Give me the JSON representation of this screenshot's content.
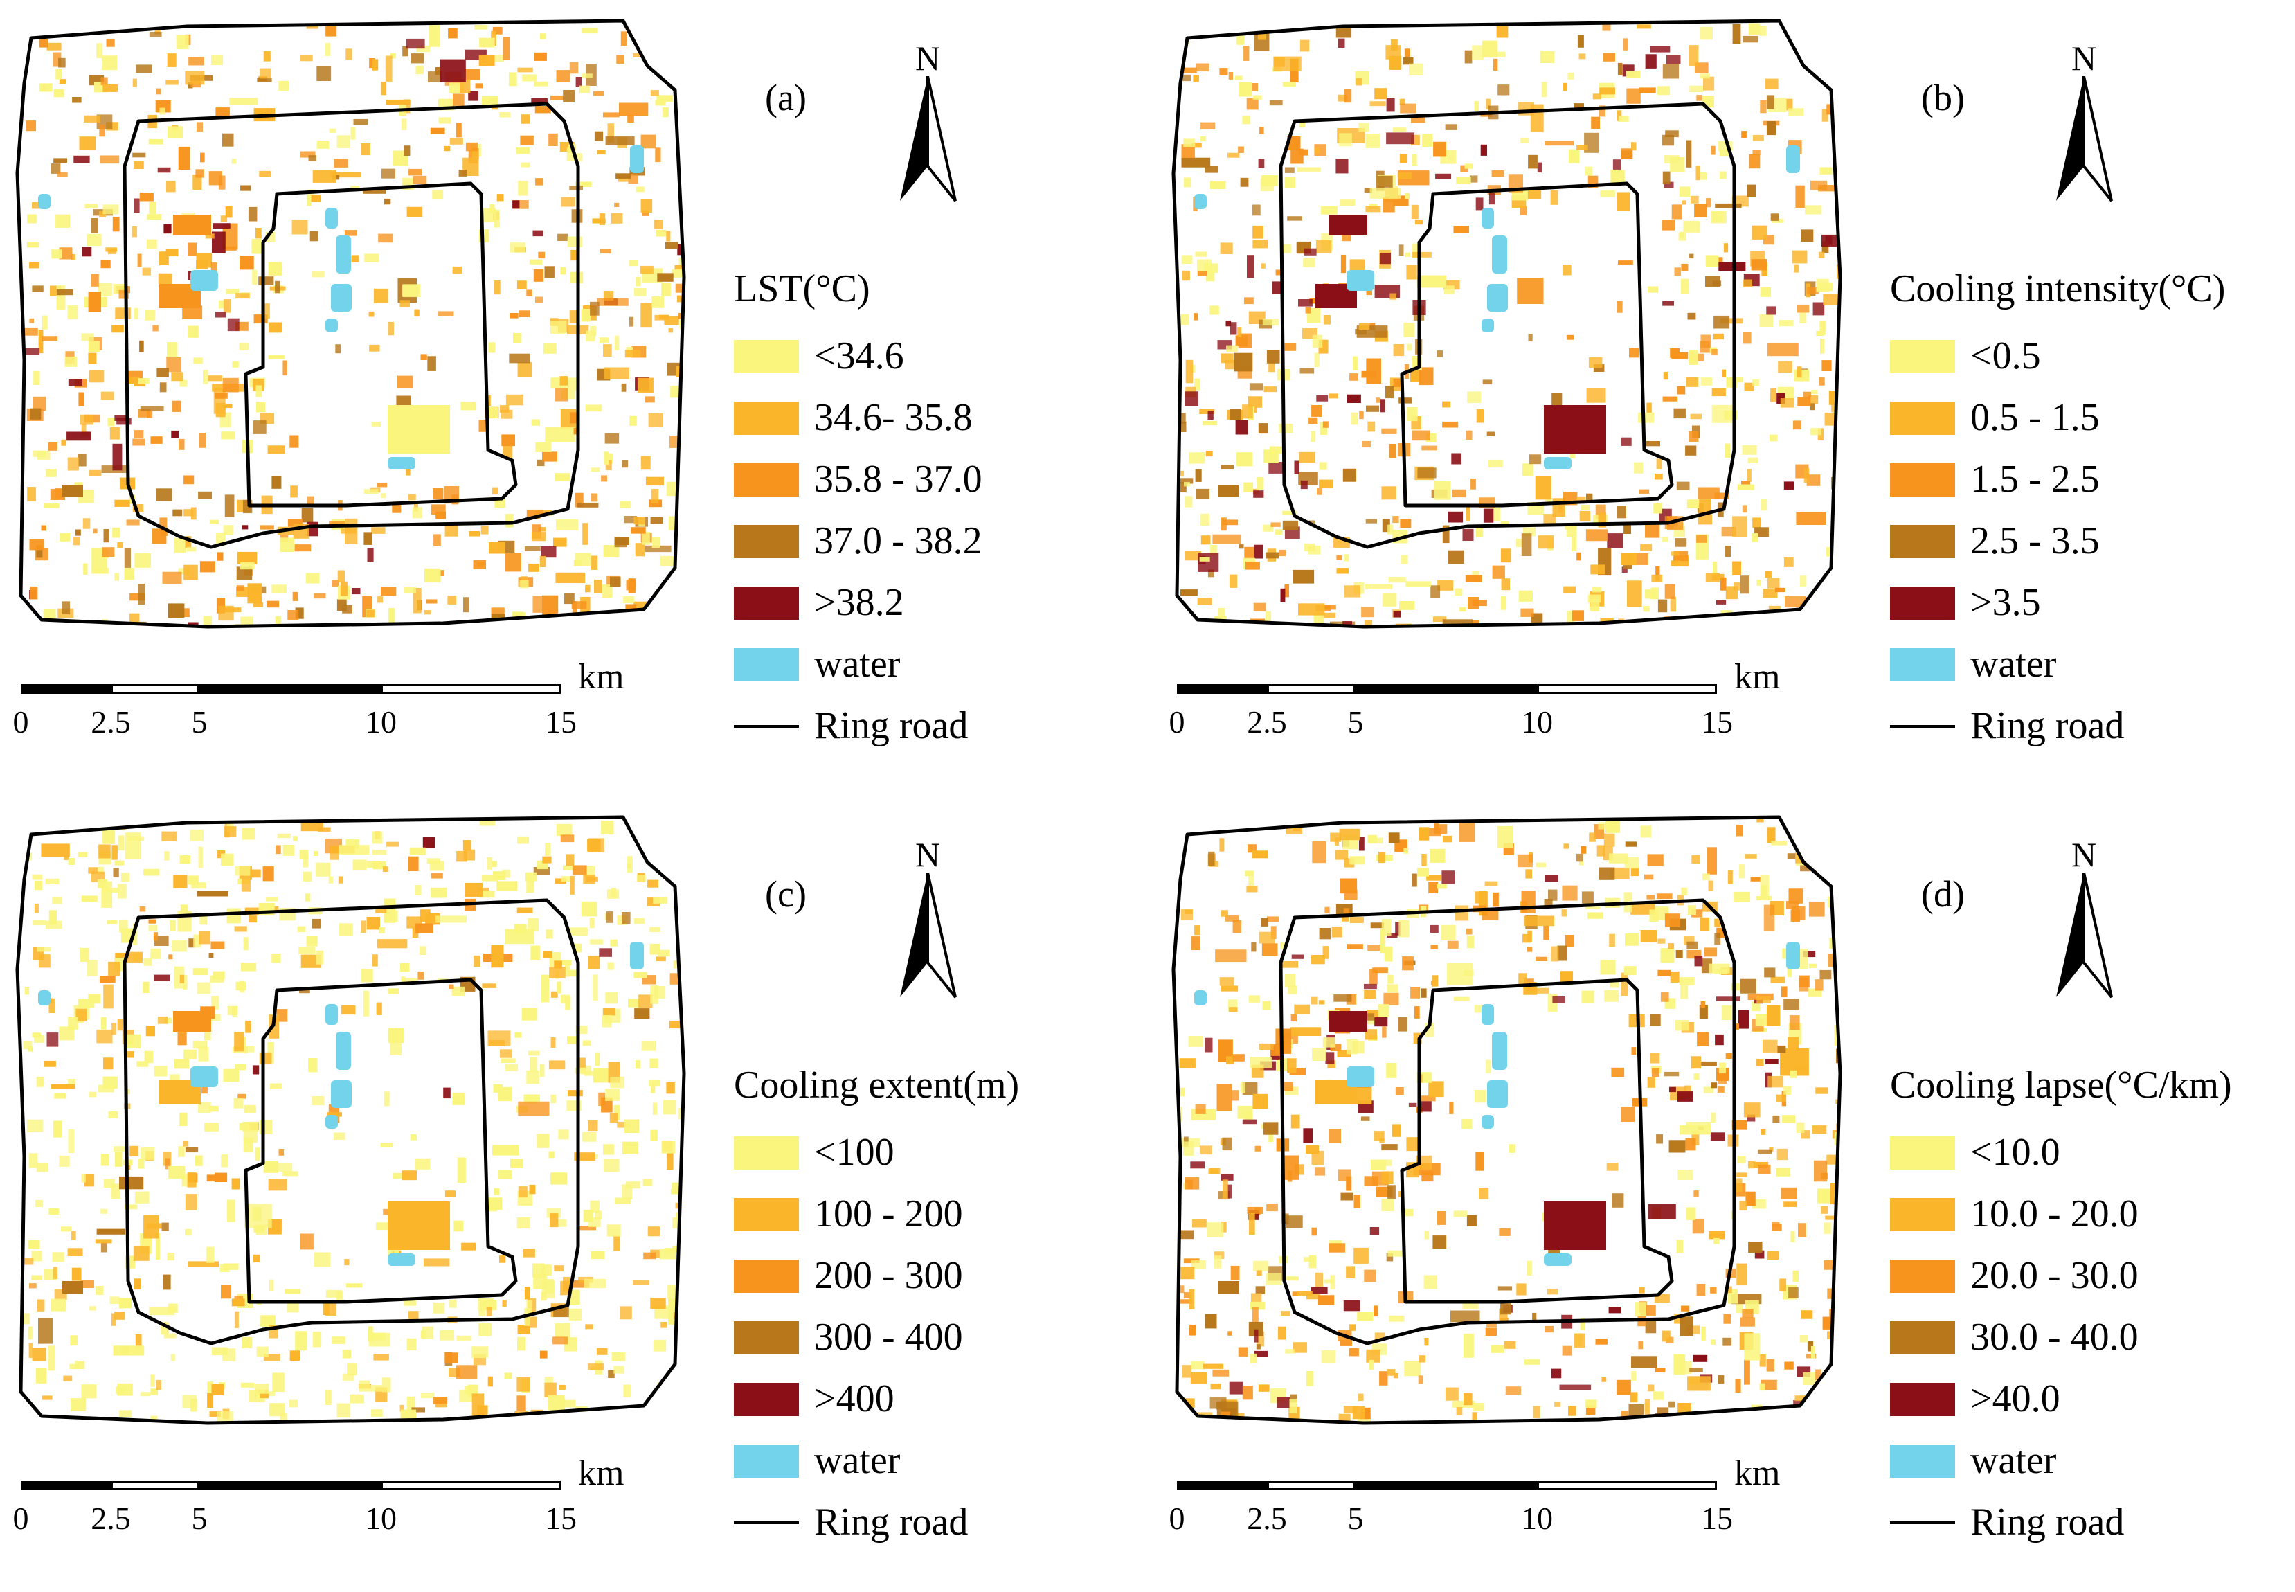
{
  "figure": {
    "panels": [
      {
        "id": "a",
        "label": "(a)",
        "north": "N",
        "legend": {
          "title": "LST(°C)",
          "items": [
            {
              "label": "<34.6",
              "color": "#faf57c"
            },
            {
              "label": "34.6- 35.8",
              "color": "#fbb52a"
            },
            {
              "label": "35.8 - 37.0",
              "color": "#f7941d"
            },
            {
              "label": "37.0 - 38.2",
              "color": "#b8771a"
            },
            {
              "label": ">38.2",
              "color": "#8b0f16"
            },
            {
              "label": "water",
              "color": "#72d3ea"
            }
          ],
          "line_label": "Ring road"
        },
        "scale": {
          "unit": "km",
          "ticks": [
            "0",
            "2.5",
            "5",
            "10",
            "15"
          ]
        }
      },
      {
        "id": "b",
        "label": "(b)",
        "north": "N",
        "legend": {
          "title": "Cooling intensity(°C)",
          "items": [
            {
              "label": "<0.5",
              "color": "#faf57c"
            },
            {
              "label": "0.5 - 1.5",
              "color": "#fbb52a"
            },
            {
              "label": "1.5 - 2.5",
              "color": "#f7941d"
            },
            {
              "label": "2.5 - 3.5",
              "color": "#b8771a"
            },
            {
              "label": ">3.5",
              "color": "#8b0f16"
            },
            {
              "label": "water",
              "color": "#72d3ea"
            }
          ],
          "line_label": "Ring road"
        },
        "scale": {
          "unit": "km",
          "ticks": [
            "0",
            "2.5",
            "5",
            "10",
            "15"
          ]
        }
      },
      {
        "id": "c",
        "label": "(c)",
        "north": "N",
        "legend": {
          "title": "Cooling extent(m)",
          "items": [
            {
              "label": "<100",
              "color": "#faf57c"
            },
            {
              "label": "100 - 200",
              "color": "#fbb52a"
            },
            {
              "label": "200 - 300",
              "color": "#f7941d"
            },
            {
              "label": "300 - 400",
              "color": "#b8771a"
            },
            {
              "label": ">400",
              "color": "#8b0f16"
            },
            {
              "label": "water",
              "color": "#72d3ea"
            }
          ],
          "line_label": "Ring road"
        },
        "scale": {
          "unit": "km",
          "ticks": [
            "0",
            "2.5",
            "5",
            "10",
            "15"
          ]
        }
      },
      {
        "id": "d",
        "label": "(d)",
        "north": "N",
        "legend": {
          "title": "Cooling lapse(°C/km)",
          "items": [
            {
              "label": "<10.0",
              "color": "#faf57c"
            },
            {
              "label": "10.0 - 20.0",
              "color": "#fbb52a"
            },
            {
              "label": "20.0 - 30.0",
              "color": "#f7941d"
            },
            {
              "label": "30.0 - 40.0",
              "color": "#b8771a"
            },
            {
              "label": ">40.0",
              "color": "#8b0f16"
            },
            {
              "label": "water",
              "color": "#72d3ea"
            }
          ],
          "line_label": "Ring road"
        },
        "scale": {
          "unit": "km",
          "ticks": [
            "0",
            "2.5",
            "5",
            "10",
            "15"
          ]
        }
      }
    ]
  }
}
